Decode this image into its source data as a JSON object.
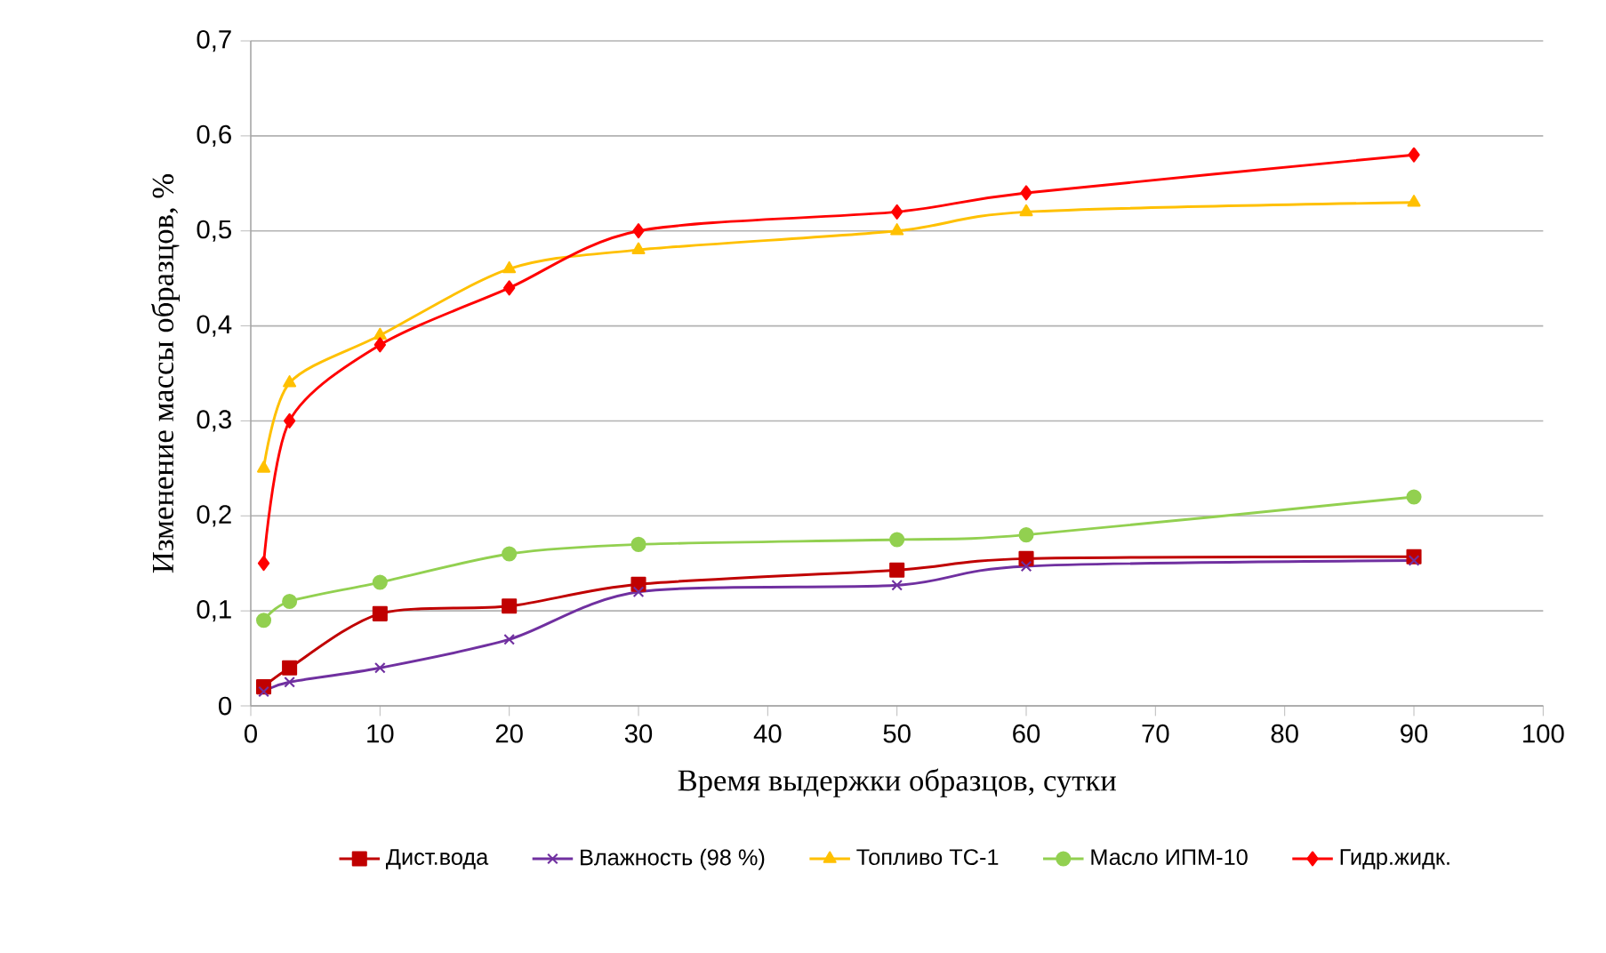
{
  "chart_data": {
    "type": "line",
    "xlabel": "Время выдержки образцов, сутки",
    "ylabel": "Изменение массы образцов, %",
    "x": [
      1,
      3,
      10,
      20,
      30,
      50,
      60,
      90
    ],
    "xlim": [
      0,
      100
    ],
    "xticks": [
      0,
      10,
      20,
      30,
      40,
      50,
      60,
      70,
      80,
      90,
      100
    ],
    "ylim": [
      0,
      0.7
    ],
    "yticks": [
      {
        "value": 0,
        "label": "0"
      },
      {
        "value": 0.1,
        "label": "0,1"
      },
      {
        "value": 0.2,
        "label": "0,2"
      },
      {
        "value": 0.3,
        "label": "0,3"
      },
      {
        "value": 0.4,
        "label": "0,4"
      },
      {
        "value": 0.5,
        "label": "0,5"
      },
      {
        "value": 0.6,
        "label": "0,6"
      },
      {
        "value": 0.7,
        "label": "0,7"
      }
    ],
    "grid": "y",
    "legend": "bottom",
    "series": [
      {
        "name": "Дист.вода",
        "color": "#c00000",
        "marker": "square",
        "values": [
          0.02,
          0.04,
          0.097,
          0.105,
          0.128,
          0.143,
          0.155,
          0.157
        ]
      },
      {
        "name": "Влажность (98 %)",
        "color": "#7030a0",
        "marker": "cross",
        "values": [
          0.015,
          0.025,
          0.04,
          0.07,
          0.12,
          0.127,
          0.147,
          0.153
        ]
      },
      {
        "name": "Топливо ТС-1",
        "color": "#ffc000",
        "marker": "triangle",
        "values": [
          0.25,
          0.34,
          0.39,
          0.46,
          0.48,
          0.5,
          0.52,
          0.53
        ]
      },
      {
        "name": "Масло ИПМ-10",
        "color": "#92d050",
        "marker": "circle",
        "values": [
          0.09,
          0.11,
          0.13,
          0.16,
          0.17,
          0.175,
          0.18,
          0.22
        ]
      },
      {
        "name": "Гидр.жидк.",
        "color": "#ff0000",
        "marker": "diamond",
        "values": [
          0.15,
          0.3,
          0.38,
          0.44,
          0.5,
          0.52,
          0.54,
          0.58
        ]
      }
    ]
  }
}
